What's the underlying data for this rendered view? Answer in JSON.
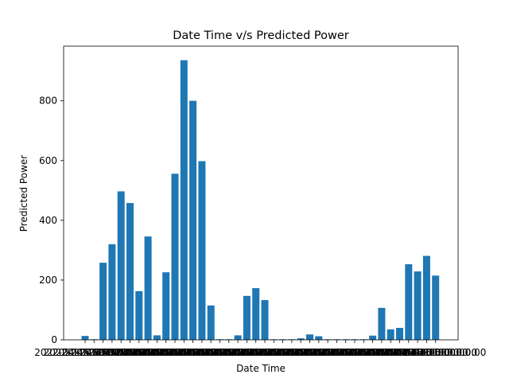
{
  "chart_data": {
    "type": "bar",
    "title": "Date Time v/s Predicted Power",
    "xlabel": "Date Time",
    "ylabel": "Predicted Power",
    "ylim": [
      0,
      983
    ],
    "yticks": [
      0,
      200,
      400,
      600,
      800
    ],
    "x_tick_label_text": "2022-04-15 00:00:00",
    "bar_color": "#1f77b4",
    "grid": false,
    "legend": "none",
    "values": [
      13,
      2,
      258,
      320,
      497,
      458,
      163,
      346,
      15,
      226,
      556,
      936,
      800,
      598,
      115,
      2,
      2,
      15,
      147,
      173,
      133,
      2,
      2,
      2,
      5,
      18,
      12,
      2,
      2,
      2,
      2,
      2,
      14,
      107,
      35,
      40,
      253,
      229,
      281,
      215
    ]
  }
}
